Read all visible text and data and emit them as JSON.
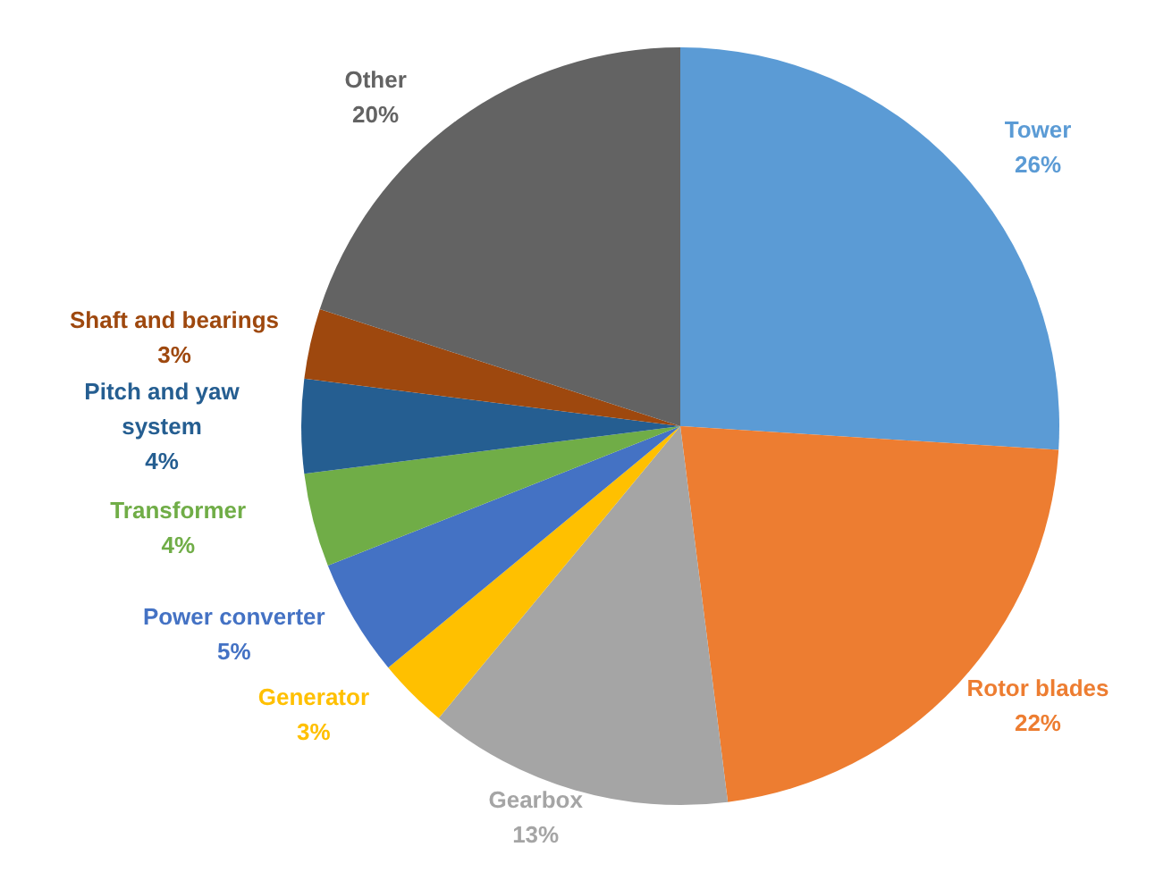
{
  "chart_data": {
    "type": "pie",
    "categories": [
      "Tower",
      "Rotor blades",
      "Gearbox",
      "Generator",
      "Power converter",
      "Transformer",
      "Pitch and yaw system",
      "Shaft and bearings",
      "Other"
    ],
    "values": [
      26,
      22,
      13,
      3,
      5,
      4,
      4,
      3,
      20
    ],
    "value_labels": [
      "26%",
      "22%",
      "13%",
      "3%",
      "5%",
      "4%",
      "4%",
      "3%",
      "20%"
    ],
    "colors": [
      "#5b9bd5",
      "#ed7d31",
      "#a5a5a5",
      "#ffc000",
      "#4472c4",
      "#70ad47",
      "#255e91",
      "#9e480e",
      "#636363"
    ]
  }
}
